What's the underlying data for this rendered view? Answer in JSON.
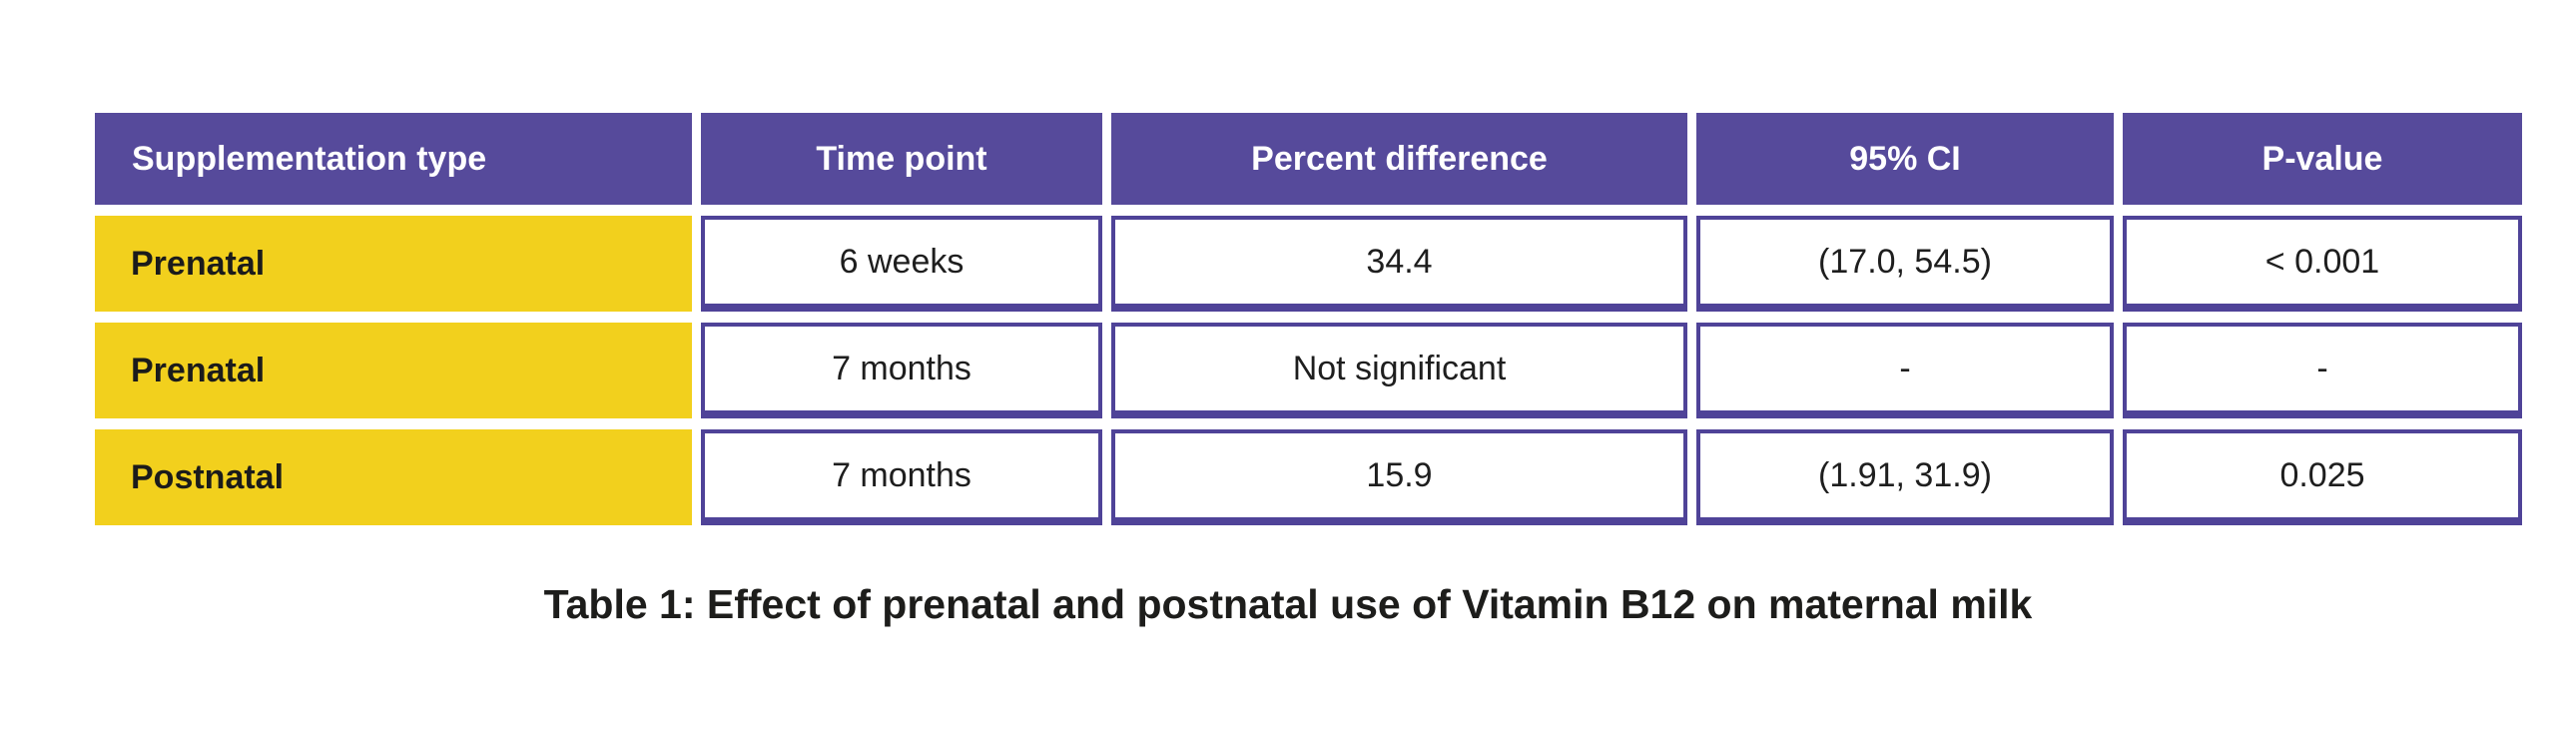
{
  "table": {
    "headers": [
      "Supplementation type",
      "Time point",
      "Percent difference",
      "95% CI",
      "P-value"
    ],
    "rows": [
      [
        "Prenatal",
        "6 weeks",
        "34.4",
        "(17.0, 54.5)",
        "< 0.001"
      ],
      [
        "Prenatal",
        "7 months",
        "Not significant",
        "-",
        "-"
      ],
      [
        "Postnatal",
        "7 months",
        "15.9",
        "(1.91, 31.9)",
        "0.025"
      ]
    ]
  },
  "caption": "Table 1: Effect of prenatal and postnatal use of Vitamin B12 on maternal milk",
  "colors": {
    "header_bg": "#564a9b",
    "header_text": "#ffffff",
    "row_label_bg": "#f2d01d",
    "cell_border": "#4f4398",
    "body_text": "#1e1e1e",
    "caption_text": "#1d1d1b"
  },
  "chart_data": {
    "type": "table",
    "title": "Table 1: Effect of prenatal and postnatal use of Vitamin B12 on maternal milk",
    "columns": [
      "Supplementation type",
      "Time point",
      "Percent difference",
      "95% CI",
      "P-value"
    ],
    "rows": [
      [
        "Prenatal",
        "6 weeks",
        "34.4",
        "(17.0, 54.5)",
        "< 0.001"
      ],
      [
        "Prenatal",
        "7 months",
        "Not significant",
        "-",
        "-"
      ],
      [
        "Postnatal",
        "7 months",
        "15.9",
        "(1.91, 31.9)",
        "0.025"
      ]
    ],
    "layout_hints": {
      "header_style": "solid purple band, white bold text",
      "first_column_style": "solid yellow label cells, bold dark text, left-aligned",
      "value_cells": "white with purple border, centered text",
      "caption_position": "bottom-center"
    }
  }
}
